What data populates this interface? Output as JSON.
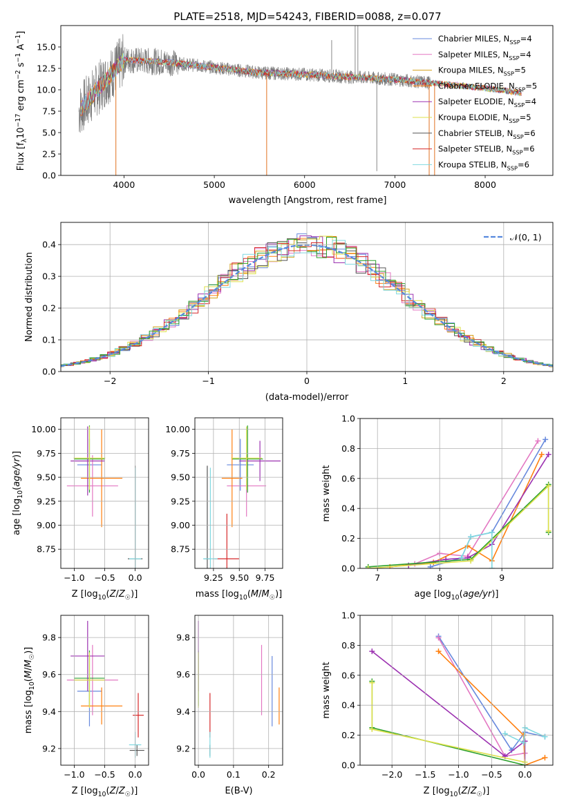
{
  "chart_data": [
    {
      "type": "line",
      "title": "PLATE=2518, MJD=54243, FIBERID=0088, z=0.077",
      "xlabel": "wavelength [Angstrom, rest frame]",
      "ylabel": "Flux [f_λ10^-17 erg cm^-2 s^-1 A^-1]",
      "xlim": [
        3300,
        8750
      ],
      "ylim": [
        0,
        17.5
      ],
      "xticks": [
        4000,
        5000,
        6000,
        7000,
        8000
      ],
      "xtick_labels": [
        "4000",
        "5000",
        "6000",
        "7000",
        "8000"
      ],
      "yticks": [
        0,
        2.5,
        5,
        7.5,
        10,
        12.5,
        15
      ],
      "ytick_labels": [
        "0.0",
        "2.5",
        "5.0",
        "7.5",
        "10.0",
        "12.5",
        "15.0"
      ],
      "grid": false,
      "legend_position": "top-right",
      "continuum": {
        "x": [
          3500,
          3700,
          4000,
          4500,
          5000,
          5500,
          6000,
          6500,
          7000,
          7500,
          8000,
          8500
        ],
        "y": [
          7.5,
          10.0,
          13.5,
          13.2,
          12.6,
          12.0,
          11.8,
          11.5,
          11.2,
          10.7,
          10.2,
          9.5
        ]
      },
      "series": [
        {
          "name": "Chabrier MILES",
          "nssp": "4",
          "color": "#6688dd"
        },
        {
          "name": "Salpeter MILES",
          "nssp": "4",
          "color": "#e377c2"
        },
        {
          "name": "Kroupa MILES",
          "nssp": "5",
          "color": "#d4a017"
        },
        {
          "name": "Chabrier ELODIE",
          "nssp": "5",
          "color": "#ff7f0e"
        },
        {
          "name": "Salpeter ELODIE",
          "nssp": "4",
          "color": "#9b30b0"
        },
        {
          "name": "Kroupa ELODIE",
          "nssp": "5",
          "color": "#dde04a"
        },
        {
          "name": "Chabrier STELIB",
          "nssp": "6",
          "color": "#555555"
        },
        {
          "name": "Salpeter STELIB",
          "nssp": "6",
          "color": "#d62728"
        },
        {
          "name": "Kroupa STELIB",
          "nssp": "6",
          "color": "#7fd8e0"
        }
      ]
    },
    {
      "type": "line",
      "xlabel": "(data-model)/error",
      "ylabel": "Normed distribution",
      "xlim": [
        -2.5,
        2.5
      ],
      "ylim": [
        0,
        0.47
      ],
      "xticks": [
        -2,
        -1,
        0,
        1,
        2
      ],
      "xtick_labels": [
        "−2",
        "−1",
        "0",
        "1",
        "2"
      ],
      "yticks": [
        0,
        0.1,
        0.2,
        0.3,
        0.4
      ],
      "ytick_labels": [
        "0.0",
        "0.1",
        "0.2",
        "0.3",
        "0.4"
      ],
      "grid": true,
      "legend_position": "top-right",
      "reference": {
        "name": "N(0,1)",
        "mean": 0,
        "sigma": 1,
        "color": "#5588dd"
      },
      "histogram_colors": [
        "#6688dd",
        "#e377c2",
        "#d4a017",
        "#ff7f0e",
        "#9b30b0",
        "#dde04a",
        "#555555",
        "#d62728",
        "#7fd8e0",
        "#2ca02c"
      ]
    },
    {
      "type": "scatter",
      "xlabel": "Z [log10(Z/Z☉)]",
      "ylabel": "age [log10(age/yr)]",
      "xlim": [
        -1.22,
        0.22
      ],
      "ylim": [
        8.55,
        10.12
      ],
      "xticks": [
        -1.0,
        -0.5,
        0.0
      ],
      "xtick_labels": [
        "−1.0",
        "−0.5",
        "0.0"
      ],
      "yticks": [
        8.75,
        9.0,
        9.25,
        9.5,
        9.75,
        10.0
      ],
      "ytick_labels": [
        "8.75",
        "9.00",
        "9.25",
        "9.50",
        "9.75",
        "10.00"
      ],
      "grid": true,
      "points": [
        {
          "x": -0.75,
          "y": 9.63,
          "xerr": 0.2,
          "yerr": 0.27,
          "color": "#6688dd"
        },
        {
          "x": -0.7,
          "y": 9.41,
          "xerr": 0.42,
          "yerr": 0.32,
          "color": "#e377c2"
        },
        {
          "x": -0.75,
          "y": 9.69,
          "xerr": 0.25,
          "yerr": 0.35,
          "color": "#2ca02c"
        },
        {
          "x": -0.55,
          "y": 9.49,
          "xerr": 0.34,
          "yerr": 0.51,
          "color": "#ff7f0e"
        },
        {
          "x": -0.78,
          "y": 9.67,
          "xerr": 0.28,
          "yerr": 0.36,
          "color": "#9b30b0"
        },
        {
          "x": -0.75,
          "y": 9.7,
          "xerr": 0.26,
          "yerr": 0.33,
          "color": "#dde04a"
        },
        {
          "x": 0.0,
          "y": 8.65,
          "xerr": 0.12,
          "yerr": 0.97,
          "color": "#555555"
        },
        {
          "x": 0.0,
          "y": 8.65,
          "xerr": 0.1,
          "yerr": 0.95,
          "color": "#7fd8e0"
        }
      ]
    },
    {
      "type": "scatter",
      "xlabel": "mass [log10(M/M☉)]",
      "ylabel": "",
      "xlim": [
        9.07,
        9.92
      ],
      "ylim": [
        8.55,
        10.12
      ],
      "xticks": [
        9.25,
        9.5,
        9.75
      ],
      "xtick_labels": [
        "9.25",
        "9.50",
        "9.75"
      ],
      "yticks": [
        8.75,
        9.0,
        9.25,
        9.5,
        9.75,
        10.0
      ],
      "ytick_labels": [
        "8.75",
        "9.00",
        "9.25",
        "9.50",
        "9.75",
        "10.00"
      ],
      "grid": true,
      "points": [
        {
          "x": 9.51,
          "y": 9.63,
          "xerr": 0.13,
          "yerr": 0.27,
          "color": "#6688dd"
        },
        {
          "x": 9.57,
          "y": 9.41,
          "xerr": 0.19,
          "yerr": 0.32,
          "color": "#e377c2"
        },
        {
          "x": 9.58,
          "y": 9.69,
          "xerr": 0.15,
          "yerr": 0.35,
          "color": "#2ca02c"
        },
        {
          "x": 9.43,
          "y": 9.49,
          "xerr": 0.1,
          "yerr": 0.51,
          "color": "#ff7f0e"
        },
        {
          "x": 9.7,
          "y": 9.67,
          "xerr": 0.2,
          "yerr": 0.21,
          "color": "#9b30b0"
        },
        {
          "x": 9.57,
          "y": 9.7,
          "xerr": 0.15,
          "yerr": 0.33,
          "color": "#dde04a"
        },
        {
          "x": 9.19,
          "y": 8.65,
          "xerr": 0.03,
          "yerr": 0.97,
          "color": "#555555"
        },
        {
          "x": 9.38,
          "y": 8.65,
          "xerr": 0.12,
          "yerr": 0.47,
          "color": "#d62728"
        },
        {
          "x": 9.22,
          "y": 8.65,
          "xerr": 0.07,
          "yerr": 0.95,
          "color": "#7fd8e0"
        }
      ]
    },
    {
      "type": "line",
      "xlabel": "age [log10(age/yr)]",
      "ylabel": "mass weight",
      "xlim": [
        6.72,
        9.82
      ],
      "ylim": [
        0,
        1.0
      ],
      "xticks": [
        7,
        8,
        9
      ],
      "xtick_labels": [
        "7",
        "8",
        "9"
      ],
      "yticks": [
        0,
        0.2,
        0.4,
        0.6,
        0.8,
        1.0
      ],
      "ytick_labels": [
        "0.0",
        "0.2",
        "0.4",
        "0.6",
        "0.8",
        "1.0"
      ],
      "grid": true,
      "series": [
        {
          "color": "#6688dd",
          "x": [
            7.85,
            8.35,
            8.5,
            8.84,
            9.7
          ],
          "y": [
            0.01,
            0.07,
            0.21,
            0.24,
            0.86
          ]
        },
        {
          "color": "#e377c2",
          "x": [
            7.6,
            8.0,
            8.45,
            9.58
          ],
          "y": [
            0.03,
            0.1,
            0.08,
            0.85
          ]
        },
        {
          "color": "#ff7f0e",
          "x": [
            7.2,
            7.9,
            8.45,
            8.84,
            9.64
          ],
          "y": [
            0.01,
            0.04,
            0.15,
            0.05,
            0.76
          ]
        },
        {
          "color": "#9b30b0",
          "x": [
            7.5,
            8.1,
            8.45,
            8.84,
            9.75
          ],
          "y": [
            0.02,
            0.06,
            0.07,
            0.16,
            0.76
          ]
        },
        {
          "color": "#2ca02c",
          "x": [
            6.85,
            8.5,
            9.75,
            9.75
          ],
          "y": [
            0.01,
            0.06,
            0.56,
            0.24
          ]
        },
        {
          "color": "#dde04a",
          "x": [
            6.85,
            8.5,
            9.75,
            9.75
          ],
          "y": [
            0.0,
            0.05,
            0.55,
            0.25
          ]
        },
        {
          "color": "#7fd8e0",
          "x": [
            8.35,
            8.5,
            8.84,
            8.84
          ],
          "y": [
            0.07,
            0.21,
            0.24,
            0.0
          ]
        }
      ]
    },
    {
      "type": "scatter",
      "xlabel": "Z [log10(Z/Z☉)]",
      "ylabel": "mass [log10(M/M☉)]",
      "xlim": [
        -1.22,
        0.22
      ],
      "ylim": [
        9.11,
        9.92
      ],
      "xticks": [
        -1.0,
        -0.5,
        0.0
      ],
      "xtick_labels": [
        "−1.0",
        "−0.5",
        "0.0"
      ],
      "yticks": [
        9.2,
        9.4,
        9.6,
        9.8
      ],
      "ytick_labels": [
        "9.2",
        "9.4",
        "9.6",
        "9.8"
      ],
      "grid": true,
      "points": [
        {
          "x": -0.75,
          "y": 9.51,
          "xerr": 0.2,
          "yerr": 0.19,
          "color": "#6688dd"
        },
        {
          "x": -0.7,
          "y": 9.57,
          "xerr": 0.42,
          "yerr": 0.19,
          "color": "#e377c2"
        },
        {
          "x": -0.75,
          "y": 9.58,
          "xerr": 0.25,
          "yerr": 0.15,
          "color": "#2ca02c"
        },
        {
          "x": -0.55,
          "y": 9.43,
          "xerr": 0.34,
          "yerr": 0.1,
          "color": "#ff7f0e"
        },
        {
          "x": -0.78,
          "y": 9.7,
          "xerr": 0.28,
          "yerr": 0.19,
          "color": "#9b30b0"
        },
        {
          "x": -0.75,
          "y": 9.57,
          "xerr": 0.26,
          "yerr": 0.15,
          "color": "#dde04a"
        },
        {
          "x": 0.03,
          "y": 9.19,
          "xerr": 0.12,
          "yerr": 0.03,
          "color": "#555555"
        },
        {
          "x": 0.05,
          "y": 9.38,
          "xerr": 0.09,
          "yerr": 0.12,
          "color": "#d62728"
        },
        {
          "x": 0.0,
          "y": 9.22,
          "xerr": 0.1,
          "yerr": 0.07,
          "color": "#7fd8e0"
        }
      ]
    },
    {
      "type": "scatter",
      "xlabel": "E(B-V)",
      "ylabel": "",
      "xlim": [
        -0.01,
        0.24
      ],
      "ylim": [
        9.11,
        9.92
      ],
      "xticks": [
        0.0,
        0.1,
        0.2
      ],
      "xtick_labels": [
        "0.0",
        "0.1",
        "0.2"
      ],
      "yticks": [
        9.2,
        9.4,
        9.6,
        9.8
      ],
      "ytick_labels": [
        "9.2",
        "9.4",
        "9.6",
        "9.8"
      ],
      "grid": true,
      "points": [
        {
          "x": 0.21,
          "y": 9.51,
          "yerr": 0.19,
          "color": "#6688dd"
        },
        {
          "x": 0.18,
          "y": 9.57,
          "yerr": 0.19,
          "color": "#e377c2"
        },
        {
          "x": 0.0,
          "y": 9.58,
          "yerr": 0.15,
          "color": "#2ca02c"
        },
        {
          "x": 0.23,
          "y": 9.43,
          "yerr": 0.1,
          "color": "#ff7f0e"
        },
        {
          "x": 0.0,
          "y": 9.7,
          "yerr": 0.19,
          "color": "#9b30b0"
        },
        {
          "x": 0.0,
          "y": 9.57,
          "yerr": 0.15,
          "color": "#dde04a"
        },
        {
          "x": 0.033,
          "y": 9.19,
          "yerr": 0.03,
          "color": "#555555"
        },
        {
          "x": 0.033,
          "y": 9.38,
          "yerr": 0.12,
          "color": "#d62728"
        },
        {
          "x": 0.033,
          "y": 9.22,
          "yerr": 0.07,
          "color": "#7fd8e0"
        }
      ]
    },
    {
      "type": "line",
      "xlabel": "Z [log10(Z/Z☉)]",
      "ylabel": "mass weight",
      "xlim": [
        -2.48,
        0.42
      ],
      "ylim": [
        0,
        1.0
      ],
      "xticks": [
        -2.0,
        -1.5,
        -1.0,
        -0.5,
        0.0
      ],
      "xtick_labels": [
        "−2.0",
        "−1.5",
        "−1.0",
        "−0.5",
        "0.0"
      ],
      "yticks": [
        0,
        0.2,
        0.4,
        0.6,
        0.8,
        1.0
      ],
      "ytick_labels": [
        "0.0",
        "0.2",
        "0.4",
        "0.6",
        "0.8",
        "1.0"
      ],
      "grid": true,
      "series": [
        {
          "color": "#6688dd",
          "x": [
            -1.3,
            -0.2,
            0.0,
            0.3
          ],
          "y": [
            0.86,
            0.1,
            0.22,
            0.19
          ]
        },
        {
          "color": "#e377c2",
          "x": [
            -1.3,
            -0.3,
            0.0
          ],
          "y": [
            0.85,
            0.06,
            0.08
          ]
        },
        {
          "color": "#ff7f0e",
          "x": [
            -1.3,
            -0.02,
            0.0,
            0.3
          ],
          "y": [
            0.76,
            0.2,
            0.0,
            0.05
          ]
        },
        {
          "color": "#9b30b0",
          "x": [
            -2.3,
            -0.3,
            0.0,
            0.0
          ],
          "y": [
            0.76,
            0.06,
            0.16,
            0.0
          ]
        },
        {
          "color": "#2ca02c",
          "x": [
            -2.3,
            -2.3,
            0.0
          ],
          "y": [
            0.56,
            0.25,
            0.0
          ]
        },
        {
          "color": "#dde04a",
          "x": [
            -2.3,
            -2.3,
            0.0
          ],
          "y": [
            0.55,
            0.24,
            0.02
          ]
        },
        {
          "color": "#7fd8e0",
          "x": [
            -0.3,
            -0.02,
            0.0,
            0.3
          ],
          "y": [
            0.21,
            0.15,
            0.25,
            0.19
          ]
        }
      ]
    }
  ]
}
